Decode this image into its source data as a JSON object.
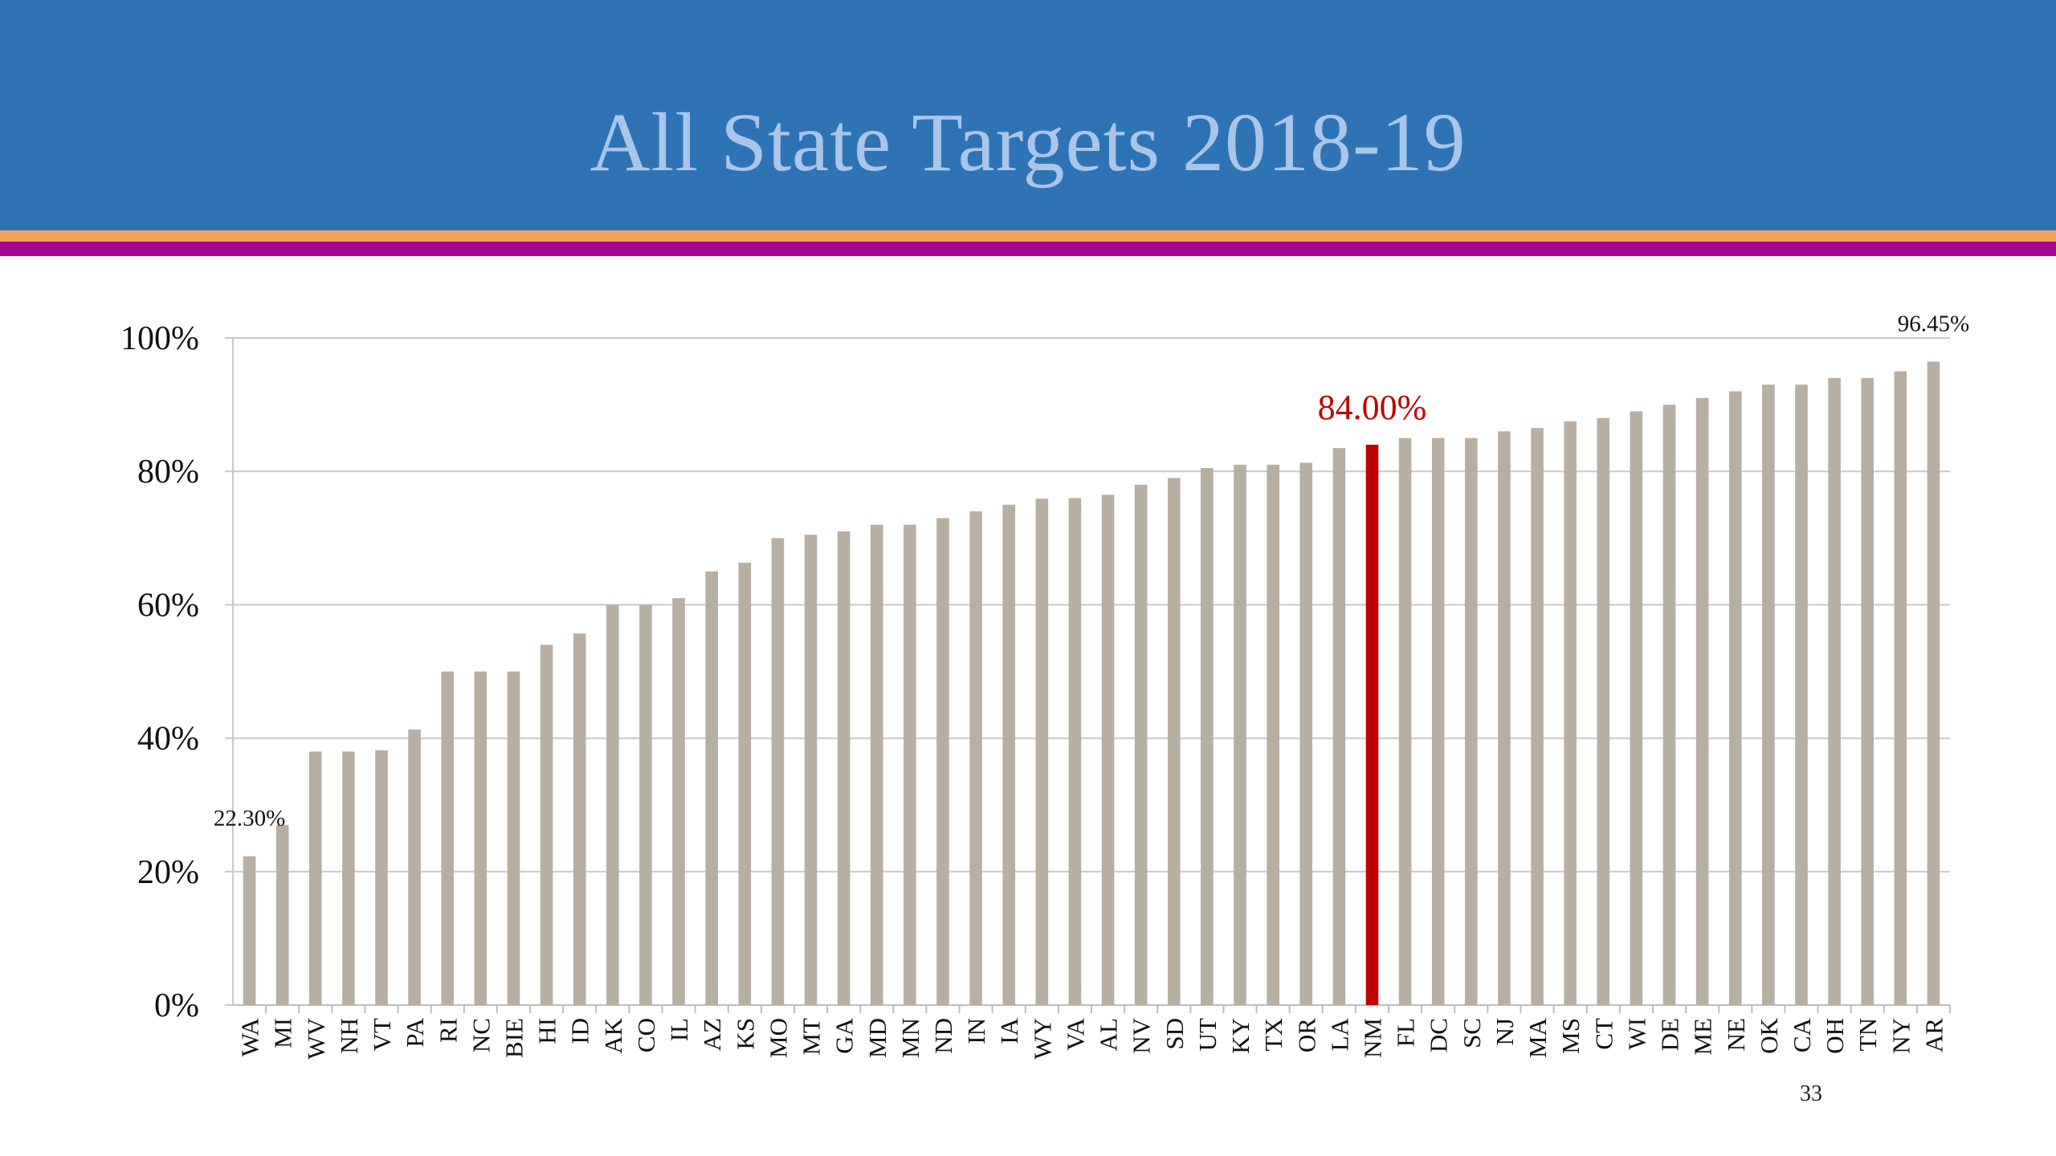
{
  "slide": {
    "title": "All State Targets 2018-19",
    "page_number": "33"
  },
  "colors": {
    "header_bg": "#2e74b5",
    "title_text": "#a9c6ea",
    "stripe_orange": "#f4a259",
    "stripe_magenta": "#a4048f",
    "bar": "#b8afa3",
    "highlight_bar": "#c00000",
    "highlight_label": "#c00000",
    "gridline": "#c8c8c8",
    "axis_text": "#111111"
  },
  "chart_data": {
    "type": "bar",
    "title": "",
    "xlabel": "",
    "ylabel": "",
    "ylim": [
      0,
      100
    ],
    "yticks": [
      "0%",
      "20%",
      "40%",
      "60%",
      "80%",
      "100%"
    ],
    "grid": true,
    "categories": [
      "WA",
      "MI",
      "WV",
      "NH",
      "VT",
      "PA",
      "RI",
      "NC",
      "BIE",
      "HI",
      "ID",
      "AK",
      "CO",
      "IL",
      "AZ",
      "KS",
      "MO",
      "MT",
      "GA",
      "MD",
      "MN",
      "ND",
      "IN",
      "IA",
      "WY",
      "VA",
      "AL",
      "NV",
      "SD",
      "UT",
      "KY",
      "TX",
      "OR",
      "LA",
      "NM",
      "FL",
      "DC",
      "SC",
      "NJ",
      "MA",
      "MS",
      "CT",
      "WI",
      "DE",
      "ME",
      "NE",
      "OK",
      "CA",
      "OH",
      "TN",
      "NY",
      "AR"
    ],
    "values": [
      22.3,
      27,
      38,
      38,
      38.2,
      41.3,
      50,
      50,
      50,
      54,
      55.7,
      60,
      60,
      61,
      65,
      66.3,
      70,
      70.5,
      71,
      72,
      72,
      73,
      74,
      75,
      75.9,
      76,
      76.5,
      78,
      79,
      80.5,
      81,
      81,
      81.3,
      83.5,
      84,
      85,
      85,
      85,
      86,
      86.5,
      87.5,
      88,
      89,
      90,
      91,
      92,
      93,
      93,
      94,
      94,
      95,
      96.45
    ],
    "highlight": {
      "category": "NM",
      "label": "84.00%"
    },
    "data_labels": [
      {
        "category": "WA",
        "label": "22.30%"
      },
      {
        "category": "AR",
        "label": "96.45%"
      }
    ]
  }
}
